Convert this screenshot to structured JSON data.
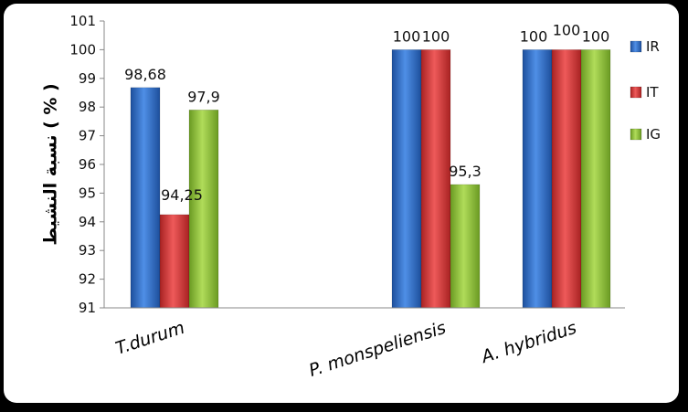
{
  "chart_data": {
    "type": "bar",
    "title": "",
    "xlabel": "",
    "ylabel": "نسبة النشيط ( % )",
    "ylim": [
      91,
      101
    ],
    "yticks": [
      91,
      92,
      93,
      94,
      95,
      96,
      97,
      98,
      99,
      100,
      101
    ],
    "categories": [
      "T.durum",
      "P. monspeliensis",
      "A. hybridus"
    ],
    "series": [
      {
        "name": "IR",
        "color": "#2e6fc6",
        "values": [
          98.68,
          100,
          100
        ],
        "labels": [
          "98,68",
          "100",
          "100"
        ]
      },
      {
        "name": "IT",
        "color": "#d33a3a",
        "values": [
          94.25,
          100,
          100
        ],
        "labels": [
          "94,25",
          "100",
          "100"
        ]
      },
      {
        "name": "IG",
        "color": "#8fc23a",
        "values": [
          97.9,
          95.3,
          100
        ],
        "labels": [
          "97,9",
          "95,3",
          "100"
        ]
      }
    ],
    "legend_position": "right",
    "grid": false
  }
}
